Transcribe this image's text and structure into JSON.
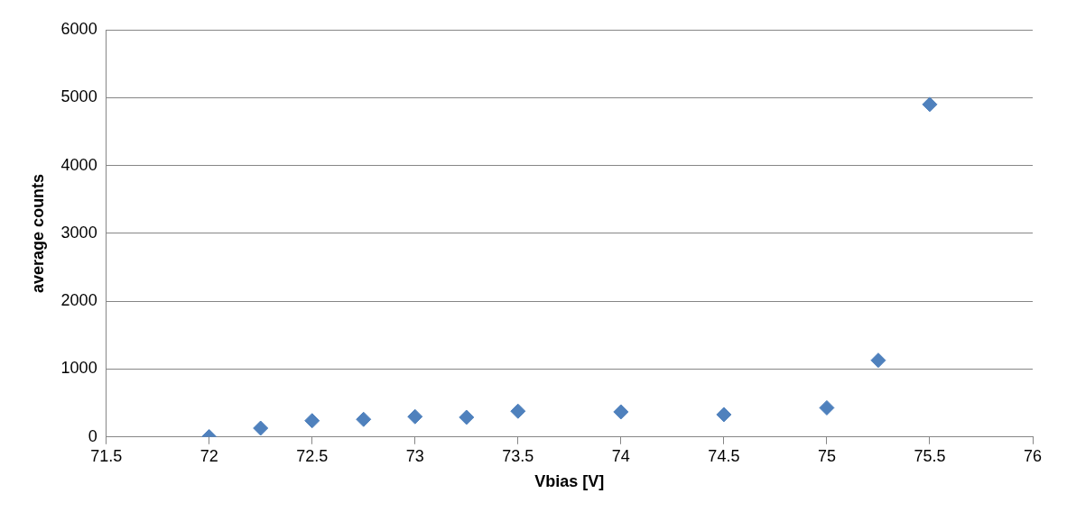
{
  "chart_data": {
    "type": "scatter",
    "xlabel": "Vbias [V]",
    "ylabel": "average counts",
    "x": [
      72,
      72.25,
      72.5,
      72.75,
      73,
      73.25,
      73.5,
      74,
      74.5,
      75,
      75.25,
      75.5
    ],
    "series": [
      {
        "color": "#4f81bd",
        "values": [
          5,
          130,
          240,
          260,
          300,
          290,
          380,
          370,
          330,
          430,
          1130,
          4900
        ]
      }
    ],
    "xlim": [
      71.5,
      76
    ],
    "xticks": [
      71.5,
      72,
      72.5,
      73,
      73.5,
      74,
      74.5,
      75,
      75.5,
      76
    ],
    "ylim": [
      0,
      6000
    ],
    "yticks": [
      0,
      1000,
      2000,
      3000,
      4000,
      5000,
      6000
    ],
    "grid": "y",
    "legend": false,
    "marker": "diamond"
  }
}
